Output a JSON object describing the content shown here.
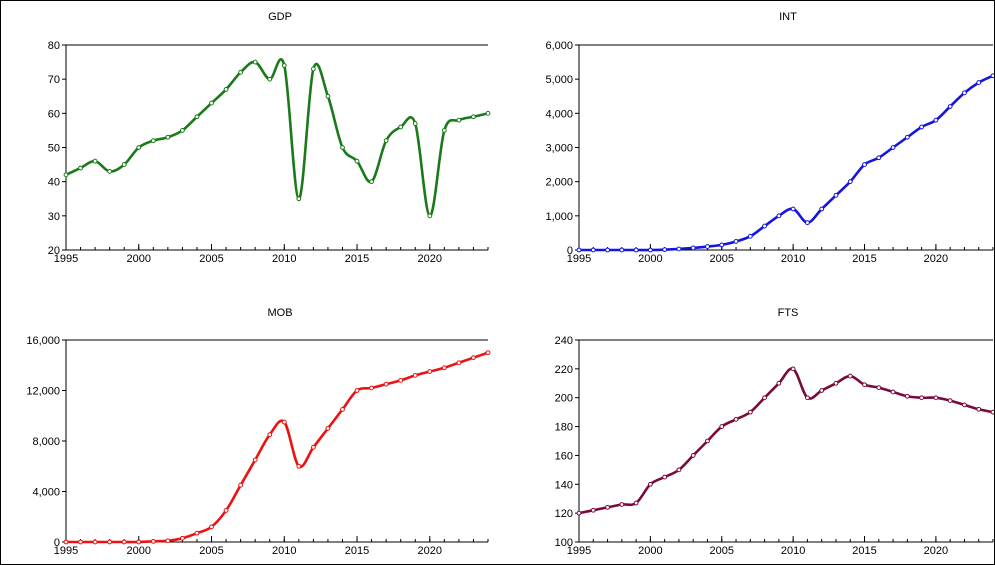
{
  "chart_data": [
    {
      "type": "line",
      "title": "GDP",
      "color": "#1a7a1a",
      "x": [
        1995,
        1996,
        1997,
        1998,
        1999,
        2000,
        2001,
        2002,
        2003,
        2004,
        2005,
        2006,
        2007,
        2008,
        2009,
        2010,
        2011,
        2012,
        2013,
        2014,
        2015,
        2016,
        2017,
        2018,
        2019,
        2020,
        2021,
        2022,
        2023,
        2024
      ],
      "series": [
        {
          "values": [
            42,
            44,
            46,
            43,
            45,
            50,
            52,
            53,
            55,
            59,
            63,
            67,
            72,
            75,
            70,
            74,
            35,
            73,
            65,
            50,
            46,
            40,
            52,
            56,
            57,
            30,
            55,
            58,
            59,
            60
          ]
        }
      ],
      "xlim": [
        1995,
        2024
      ],
      "ylim": [
        20,
        80
      ],
      "yticks": [
        20,
        30,
        40,
        50,
        60,
        70,
        80
      ],
      "ytick_labels": [
        "20",
        "30",
        "40",
        "50",
        "60",
        "70",
        "80"
      ],
      "xticks": [
        1995,
        2000,
        2005,
        2010,
        2015,
        2020
      ],
      "xtick_labels": [
        "1995",
        "2000",
        "2005",
        "2010",
        "2015",
        "2020"
      ]
    },
    {
      "type": "line",
      "title": "INT",
      "color": "#1515e0",
      "x": [
        1995,
        1996,
        1997,
        1998,
        1999,
        2000,
        2001,
        2002,
        2003,
        2004,
        2005,
        2006,
        2007,
        2008,
        2009,
        2010,
        2011,
        2012,
        2013,
        2014,
        2015,
        2016,
        2017,
        2018,
        2019,
        2020,
        2021,
        2022,
        2023,
        2024
      ],
      "series": [
        {
          "values": [
            0,
            0,
            0,
            0,
            0,
            0,
            10,
            30,
            60,
            100,
            150,
            250,
            400,
            700,
            1000,
            1200,
            800,
            1200,
            1600,
            2000,
            2500,
            2700,
            3000,
            3300,
            3600,
            3800,
            4200,
            4600,
            4900,
            5100
          ]
        }
      ],
      "xlim": [
        1995,
        2024
      ],
      "ylim": [
        0,
        6000
      ],
      "yticks": [
        0,
        1000,
        2000,
        3000,
        4000,
        5000,
        6000
      ],
      "ytick_labels": [
        "0",
        "1,000",
        "2,000",
        "3,000",
        "4,000",
        "5,000",
        "6,000"
      ],
      "xticks": [
        1995,
        2000,
        2005,
        2010,
        2015,
        2020
      ],
      "xtick_labels": [
        "1995",
        "2000",
        "2005",
        "2010",
        "2015",
        "2020"
      ]
    },
    {
      "type": "line",
      "title": "MOB",
      "color": "#ee1111",
      "x": [
        1995,
        1996,
        1997,
        1998,
        1999,
        2000,
        2001,
        2002,
        2003,
        2004,
        2005,
        2006,
        2007,
        2008,
        2009,
        2010,
        2011,
        2012,
        2013,
        2014,
        2015,
        2016,
        2017,
        2018,
        2019,
        2020,
        2021,
        2022,
        2023,
        2024
      ],
      "series": [
        {
          "values": [
            0,
            0,
            0,
            0,
            0,
            0,
            50,
            100,
            300,
            700,
            1200,
            2500,
            4500,
            6500,
            8500,
            9500,
            6000,
            7500,
            9000,
            10500,
            12000,
            12200,
            12500,
            12800,
            13200,
            13500,
            13800,
            14200,
            14600,
            15000
          ]
        }
      ],
      "xlim": [
        1995,
        2024
      ],
      "ylim": [
        0,
        16000
      ],
      "yticks": [
        0,
        4000,
        8000,
        12000,
        16000
      ],
      "ytick_labels": [
        "0",
        "4,000",
        "8,000",
        "12,000",
        "16,000"
      ],
      "xticks": [
        1995,
        2000,
        2005,
        2010,
        2015,
        2020
      ],
      "xtick_labels": [
        "1995",
        "2000",
        "2005",
        "2010",
        "2015",
        "2020"
      ]
    },
    {
      "type": "line",
      "title": "FTS",
      "color": "#7a0a3c",
      "x": [
        1995,
        1996,
        1997,
        1998,
        1999,
        2000,
        2001,
        2002,
        2003,
        2004,
        2005,
        2006,
        2007,
        2008,
        2009,
        2010,
        2011,
        2012,
        2013,
        2014,
        2015,
        2016,
        2017,
        2018,
        2019,
        2020,
        2021,
        2022,
        2023,
        2024
      ],
      "series": [
        {
          "values": [
            120,
            122,
            124,
            126,
            127,
            140,
            145,
            150,
            160,
            170,
            180,
            185,
            190,
            200,
            210,
            220,
            200,
            205,
            210,
            215,
            209,
            207,
            204,
            201,
            200,
            200,
            198,
            195,
            192,
            190
          ]
        }
      ],
      "xlim": [
        1995,
        2024
      ],
      "ylim": [
        100,
        240
      ],
      "yticks": [
        100,
        120,
        140,
        160,
        180,
        200,
        220,
        240
      ],
      "ytick_labels": [
        "100",
        "120",
        "140",
        "160",
        "180",
        "200",
        "220",
        "240"
      ],
      "xticks": [
        1995,
        2000,
        2005,
        2010,
        2015,
        2020
      ],
      "xtick_labels": [
        "1995",
        "2000",
        "2005",
        "2010",
        "2015",
        "2020"
      ]
    }
  ]
}
